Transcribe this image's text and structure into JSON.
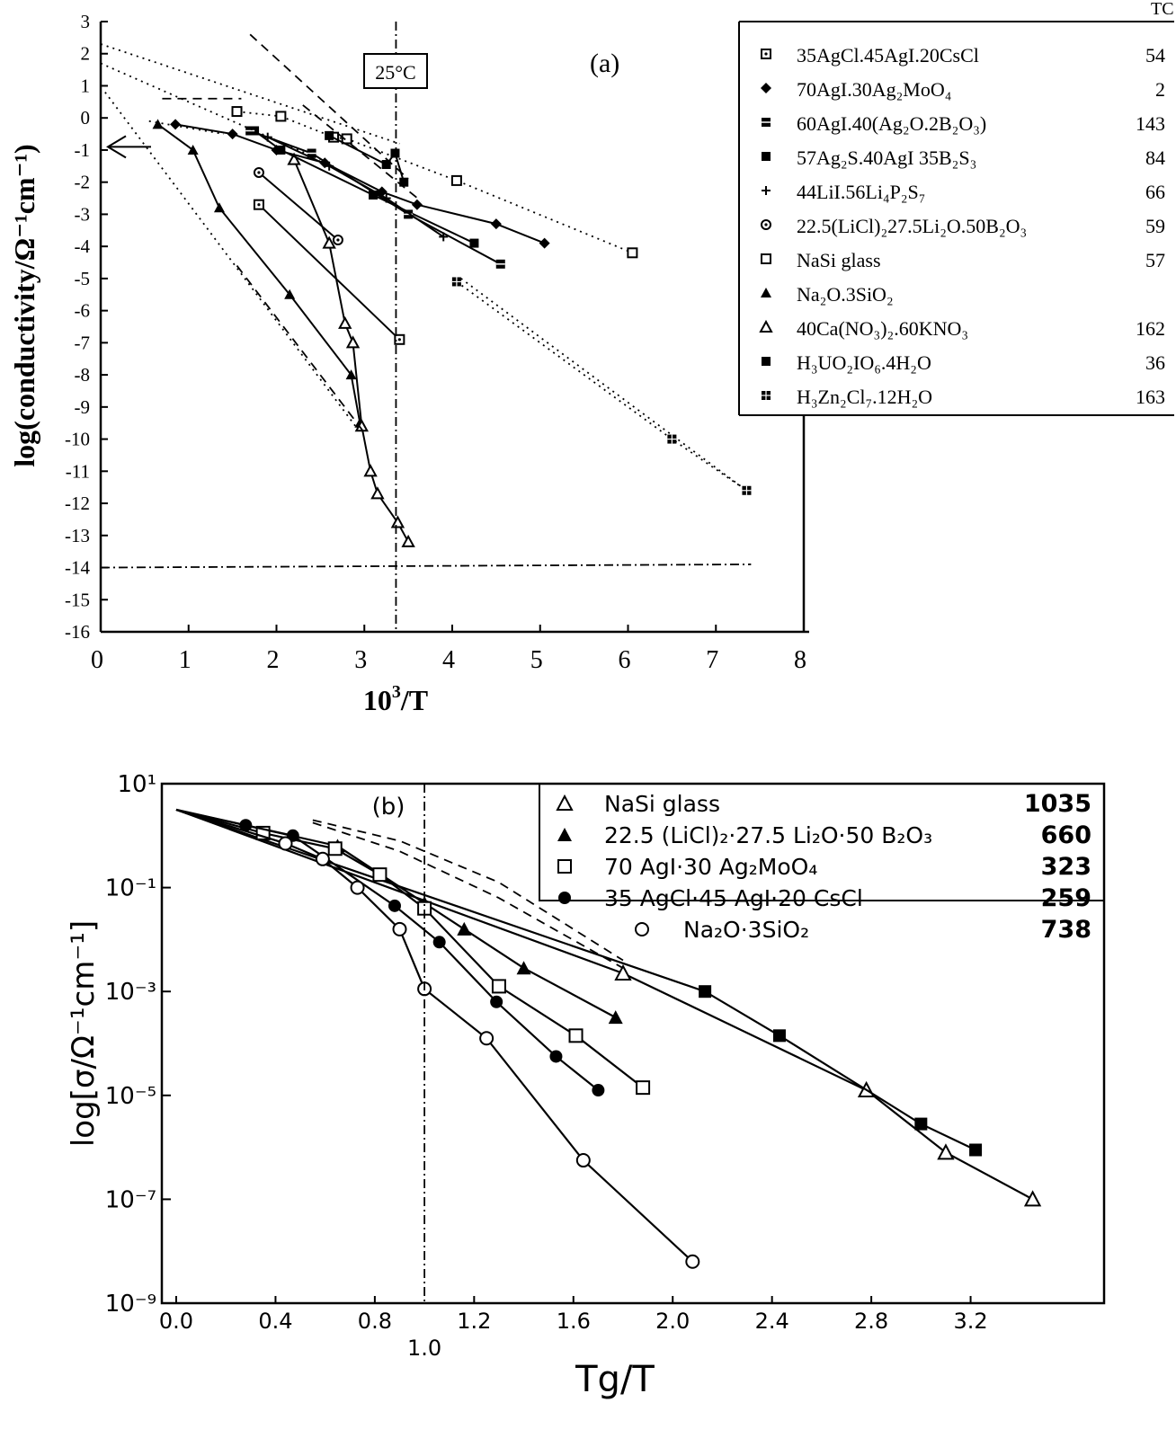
{
  "chart_data": [
    {
      "id": "a",
      "type": "line",
      "panel_label": "(a)",
      "annotation": "25°C",
      "xlabel": "10",
      "xlabel_sup": "3",
      "xlabel_suffix": "/T",
      "ylabel": "log(conductivity/Ω⁻¹cm⁻¹)",
      "xlim": [
        0,
        8
      ],
      "ylim": [
        -16,
        3
      ],
      "x_ticks": [
        "0",
        "1",
        "2",
        "3",
        "4",
        "5",
        "6",
        "7",
        "8"
      ],
      "y_ticks": [
        "3",
        "2",
        "1",
        "0",
        "-1",
        "-2",
        "-3",
        "-4",
        "-5",
        "-6",
        "-7",
        "-8",
        "-9",
        "-10",
        "-11",
        "-12",
        "-13",
        "-14",
        "-15",
        "-16"
      ],
      "legend_header": "TC",
      "legend": [
        {
          "label": "35AgCl.45AgI.20CsCl",
          "value": "54",
          "marker": "sq-dot"
        },
        {
          "label": "70AgI.30Ag₂MoO₄",
          "value": "2",
          "marker": "diamond"
        },
        {
          "label": "60AgI.40(Ag₂O.2B₂O₃)",
          "value": "143",
          "marker": "sq-hatch"
        },
        {
          "label": "57Ag₂S.40AgI 35B₂S₃",
          "value": "84",
          "marker": "sq-fill"
        },
        {
          "label": "44LiI.56Li₄P₂S₇",
          "value": "66",
          "marker": "plus"
        },
        {
          "label": "22.5(LiCl)₂27.5Li₂O.50B₂O₃",
          "value": "59",
          "marker": "circle-dot"
        },
        {
          "label": "NaSi glass",
          "value": "57",
          "marker": "sq-open"
        },
        {
          "label": "Na₂O.3SiO₂",
          "value": "",
          "marker": "tri-fill"
        },
        {
          "label": "40Ca(NO₃)₂.60KNO₃",
          "value": "162",
          "marker": "tri-open"
        },
        {
          "label": "H₃UO₂IO₆.4H₂O",
          "value": "36",
          "marker": "sq-fill"
        },
        {
          "label": "H₃Zn₂Cl₇.12H₂O",
          "value": "163",
          "marker": "sq-grid"
        }
      ],
      "series": [
        {
          "name": "NaSi glass",
          "marker": "sq-open",
          "style": "dotted",
          "x": [
            1.55,
            2.05,
            2.65,
            2.8,
            4.05,
            6.05
          ],
          "y": [
            0.2,
            0.05,
            -0.6,
            -0.65,
            -1.95,
            -4.2
          ]
        },
        {
          "name": "Na2O.3SiO2",
          "marker": "tri-fill",
          "style": "solid",
          "x": [
            0.65,
            1.05,
            1.35,
            2.15,
            2.85,
            2.95
          ],
          "y": [
            -0.2,
            -1.0,
            -2.8,
            -5.5,
            -8.0,
            -9.5
          ]
        },
        {
          "name": "40Ca(NO3)2.60KNO3",
          "marker": "tri-open",
          "style": "solid",
          "x": [
            2.2,
            2.6,
            2.78,
            2.87,
            2.97,
            3.07,
            3.15,
            3.38,
            3.5
          ],
          "y": [
            -1.3,
            -3.9,
            -6.4,
            -7.0,
            -9.6,
            -11.0,
            -11.7,
            -12.6,
            -13.2
          ]
        },
        {
          "name": "70AgI.30Ag2MoO4",
          "marker": "diamond",
          "style": "solid",
          "x": [
            0.85,
            1.5,
            2.0,
            2.55,
            3.2,
            3.6,
            4.5,
            5.05
          ],
          "y": [
            -0.2,
            -0.5,
            -1.0,
            -1.4,
            -2.3,
            -2.7,
            -3.3,
            -3.9
          ]
        },
        {
          "name": "57Ag2S.40AgI.35B2S3",
          "marker": "sq-fill",
          "style": "solid",
          "x": [
            1.75,
            2.05,
            3.1,
            4.25
          ],
          "y": [
            -0.4,
            -1.0,
            -2.4,
            -3.9
          ]
        },
        {
          "name": "60AgI.40(Ag2O.2B2O3)",
          "marker": "sq-hatch",
          "style": "solid",
          "x": [
            1.7,
            2.4,
            3.5,
            4.55
          ],
          "y": [
            -0.4,
            -1.1,
            -3.0,
            -4.55
          ]
        },
        {
          "name": "44LiI.56Li4P2S7",
          "marker": "plus",
          "style": "solid",
          "x": [
            1.9,
            2.6,
            3.25,
            3.9
          ],
          "y": [
            -0.6,
            -1.5,
            -2.5,
            -3.7
          ]
        },
        {
          "name": "22.5(LiCl)2.27.5Li2O.50B2O3",
          "marker": "circle-dot",
          "style": "solid",
          "x": [
            1.8,
            2.7
          ],
          "y": [
            -1.7,
            -3.8
          ]
        },
        {
          "name": "35AgCl.45AgI.20CsCl",
          "marker": "sq-dot",
          "style": "solid",
          "x": [
            1.8,
            3.4
          ],
          "y": [
            -2.7,
            -6.9
          ]
        },
        {
          "name": "H3UO2IO6.4H2O",
          "marker": "sq-fill",
          "style": "solid",
          "x": [
            2.6,
            3.25,
            3.35,
            3.45
          ],
          "y": [
            -0.55,
            -1.45,
            -1.1,
            -2.0
          ]
        },
        {
          "name": "H3Zn2Cl7.12H2O",
          "marker": "sq-grid",
          "style": "dotted",
          "x": [
            4.05,
            6.5,
            7.35
          ],
          "y": [
            -5.1,
            -10.0,
            -11.6
          ]
        },
        {
          "name": "extrapolation-1",
          "marker": "none",
          "style": "dotted",
          "x": [
            0.0,
            3.4
          ],
          "y": [
            2.3,
            -0.8
          ]
        },
        {
          "name": "extrapolation-2",
          "marker": "none",
          "style": "dotted",
          "x": [
            0.0,
            2.5
          ],
          "y": [
            1.7,
            -1.3
          ]
        },
        {
          "name": "extrapolation-3",
          "marker": "none",
          "style": "dotted",
          "x": [
            0.05,
            2.9
          ],
          "y": [
            0.8,
            -9.6
          ]
        },
        {
          "name": "extrapolation-4",
          "marker": "none",
          "style": "dashed",
          "x": [
            1.7,
            3.5
          ],
          "y": [
            2.6,
            -1.9
          ]
        },
        {
          "name": "extrapolation-5",
          "marker": "none",
          "style": "dashed",
          "x": [
            1.55,
            3.0
          ],
          "y": [
            -4.6,
            -9.8
          ]
        },
        {
          "name": "extrapolation-6",
          "marker": "none",
          "style": "dashed",
          "x": [
            2.3,
            3.65
          ],
          "y": [
            0.4,
            -2.6
          ]
        },
        {
          "name": "extrapolation-7",
          "marker": "none",
          "style": "dashed",
          "x": [
            0.7,
            1.6
          ],
          "y": [
            0.6,
            0.6
          ]
        },
        {
          "name": "extrapolation-8",
          "marker": "none",
          "style": "dotted",
          "x": [
            0.55,
            1.4
          ],
          "y": [
            -0.1,
            -0.5
          ]
        },
        {
          "name": "extrapolation-9",
          "marker": "none",
          "style": "dotted",
          "x": [
            4.1,
            7.3
          ],
          "y": [
            -5.0,
            -11.5
          ]
        },
        {
          "name": "limit-line",
          "marker": "none",
          "style": "dashdot",
          "x": [
            0.0,
            7.4
          ],
          "y": [
            -14.0,
            -13.9
          ]
        },
        {
          "name": "25C-line",
          "marker": "none",
          "style": "dashdot-v",
          "x": [
            3.36,
            3.36
          ],
          "y": [
            3.0,
            -16.0
          ]
        }
      ],
      "arrow_at_y": -0.9
    },
    {
      "id": "b",
      "type": "line",
      "panel_label": "(b)",
      "xlabel": "Tg/T",
      "ylabel": "log[σ/Ω⁻¹cm⁻¹]",
      "xlim": [
        0.0,
        3.6
      ],
      "y_scale": "log",
      "ylim_exp": [
        -9,
        1
      ],
      "x_ticks": [
        "0.0",
        "0.4",
        "0.8",
        "1.2",
        "1.6",
        "2.0",
        "2.4",
        "2.8",
        "3.2"
      ],
      "x_tick_extra": "1.0",
      "y_ticks": [
        "10¹",
        "10⁻¹",
        "10⁻³",
        "10⁻⁵",
        "10⁻⁷",
        "10⁻⁹"
      ],
      "legend": [
        {
          "label": "NaSi glass",
          "value": "1035",
          "marker": "tri-open"
        },
        {
          "label": "22.5 (LiCl)₂·27.5 Li₂O·50 B₂O₃",
          "value": "660",
          "marker": "tri-fill"
        },
        {
          "label": "70 AgI·30 Ag₂MoO₄",
          "value": "323",
          "marker": "sq-open"
        },
        {
          "label": "35 AgCl·45 AgI·20 CsCl",
          "value": "259",
          "marker": "circ-fill"
        },
        {
          "label": "Na₂O·3SiO₂",
          "value": "738",
          "marker": "circ-open"
        }
      ],
      "series": [
        {
          "name": "NaSi glass",
          "marker": "tri-open",
          "style": "solid",
          "x": [
            0.0,
            1.8,
            2.78,
            3.1,
            3.45
          ],
          "y": [
            0.5,
            -2.65,
            -4.9,
            -6.1,
            -7.0
          ]
        },
        {
          "name": "H-series (filled squares)",
          "marker": "sq-fill",
          "style": "solid",
          "x": [
            0.0,
            2.13,
            2.43,
            3.0,
            3.22
          ],
          "y": [
            0.5,
            -3.0,
            -3.85,
            -5.55,
            -6.05
          ]
        },
        {
          "name": "22.5(LiCl)2.27.5Li2O.50B2O3",
          "marker": "tri-fill",
          "style": "solid",
          "x": [
            0.0,
            0.65,
            1.0,
            1.16,
            1.4,
            1.77
          ],
          "y": [
            0.5,
            -0.2,
            -1.3,
            -1.8,
            -2.55,
            -3.5
          ]
        },
        {
          "name": "70AgI.30Ag2MoO4",
          "marker": "sq-open",
          "style": "solid",
          "x": [
            0.0,
            0.35,
            0.64,
            0.82,
            1.0,
            1.3,
            1.61,
            1.88
          ],
          "y": [
            0.5,
            0.05,
            -0.25,
            -0.75,
            -1.4,
            -2.9,
            -3.85,
            -4.85
          ]
        },
        {
          "name": "35AgCl.45AgI.20CsCl",
          "marker": "circ-fill",
          "style": "solid",
          "x": [
            0.0,
            0.28,
            0.47,
            0.88,
            1.06,
            1.29,
            1.53,
            1.7
          ],
          "y": [
            0.5,
            0.2,
            0.0,
            -1.35,
            -2.05,
            -3.2,
            -4.25,
            -4.9
          ]
        },
        {
          "name": "Na2O.3SiO2",
          "marker": "circ-open",
          "style": "solid",
          "x": [
            0.0,
            0.44,
            0.59,
            0.73,
            0.9,
            1.0,
            1.25,
            1.64,
            2.08
          ],
          "y": [
            0.5,
            -0.15,
            -0.45,
            -1.0,
            -1.8,
            -2.95,
            -3.9,
            -6.25,
            -8.2
          ]
        },
        {
          "name": "dashed-1",
          "marker": "none",
          "style": "dashed",
          "x": [
            0.55,
            0.9,
            1.3,
            1.8
          ],
          "y": [
            0.3,
            -0.1,
            -0.9,
            -2.4
          ]
        },
        {
          "name": "dashed-2",
          "marker": "none",
          "style": "dashed",
          "x": [
            0.55,
            0.9,
            1.3,
            1.8
          ],
          "y": [
            0.25,
            -0.3,
            -1.2,
            -2.55
          ]
        },
        {
          "name": "Tg-line",
          "marker": "none",
          "style": "dashdot-v",
          "x": [
            1.0,
            1.0
          ],
          "y": [
            1.0,
            -9.0
          ]
        }
      ]
    }
  ]
}
